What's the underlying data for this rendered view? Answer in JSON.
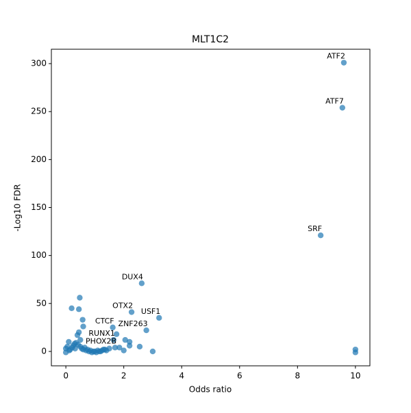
{
  "chart_data": {
    "type": "scatter",
    "title": "MLT1C2",
    "xlabel": "Odds ratio",
    "ylabel": "-Log10 FDR",
    "color": "#1f77b4",
    "xlim": [
      -0.5,
      10.5
    ],
    "xticks": [
      0,
      2,
      4,
      6,
      8,
      10
    ],
    "ylim": [
      -15,
      315
    ],
    "yticks": [
      0,
      50,
      100,
      150,
      200,
      250,
      300
    ],
    "x": [
      9.6,
      9.55,
      8.8,
      2.62,
      2.27,
      3.22,
      2.78,
      1.62,
      1.65,
      1.7,
      0.2,
      0.45,
      0.48,
      0.58,
      0.6,
      0.4,
      0.45,
      0.5,
      1.75,
      2.05,
      2.2,
      2.2,
      2.55,
      3.0,
      2.0,
      1.85,
      10.0,
      10.0,
      0.1,
      0.3,
      0.0,
      0.0,
      0.05,
      0.15,
      0.25,
      0.35,
      0.55,
      0.7,
      0.8,
      0.9,
      1.0,
      1.1,
      1.2,
      1.3,
      1.4,
      1.5,
      0.65,
      0.75,
      0.85,
      0.95,
      1.05,
      1.15,
      1.25,
      1.35,
      0.12,
      0.22,
      0.32,
      0.42,
      0.5,
      0.6
    ],
    "y": [
      301,
      254,
      121,
      71,
      41,
      35,
      22,
      25,
      12,
      4,
      45,
      44,
      56,
      33,
      26,
      17,
      20,
      12,
      18,
      12,
      10,
      6,
      5,
      0,
      1,
      4,
      2,
      -1,
      10,
      8,
      3,
      -1,
      5,
      2,
      6,
      9,
      3,
      1,
      0,
      -1,
      0,
      1,
      0,
      2,
      1,
      3,
      4,
      2,
      1,
      0,
      -1,
      0,
      1,
      2,
      1,
      4,
      3,
      7,
      5,
      2
    ],
    "labels": [
      "ATF2",
      "ATF7",
      "SRF",
      "DUX4",
      "OTX2",
      "USF1",
      "ZNF263",
      "CTCF",
      "RUNX1",
      "PHOX2B",
      null,
      null,
      null,
      null,
      null,
      null,
      null,
      null,
      null,
      null,
      null,
      null,
      null,
      null,
      null,
      null,
      null,
      null,
      null,
      null,
      null,
      null,
      null,
      null,
      null,
      null,
      null,
      null,
      null,
      null,
      null,
      null,
      null,
      null,
      null,
      null,
      null,
      null,
      null,
      null,
      null,
      null,
      null,
      null,
      null,
      null,
      null,
      null,
      null,
      null
    ]
  }
}
